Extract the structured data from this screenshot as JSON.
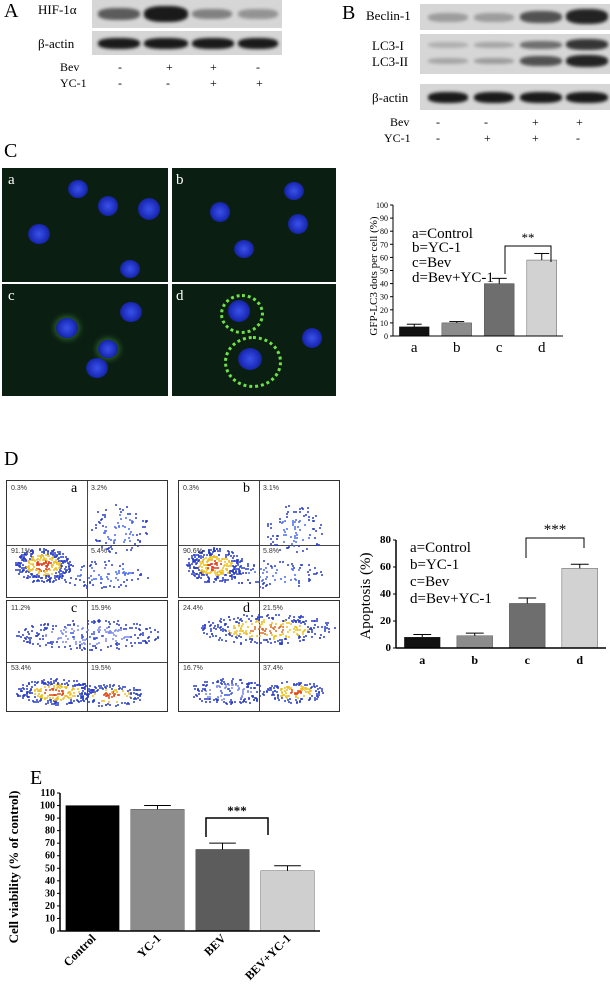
{
  "panel_A": {
    "label": "A",
    "rows": [
      "HIF-1α",
      "β-actin"
    ],
    "treatments": [
      {
        "name": "Bev",
        "marks": [
          "-",
          "+",
          "+",
          "-"
        ]
      },
      {
        "name": "YC-1",
        "marks": [
          "-",
          "-",
          "+",
          "+"
        ]
      }
    ],
    "hif_intensity": [
      0.6,
      1.0,
      0.45,
      0.3
    ]
  },
  "panel_B": {
    "label": "B",
    "rows": [
      "Beclin-1",
      "LC3-I",
      "LC3-II",
      "β-actin"
    ],
    "treatments": [
      {
        "name": "Bev",
        "marks": [
          "-",
          "-",
          "+",
          "+"
        ]
      },
      {
        "name": "YC-1",
        "marks": [
          "-",
          "+",
          "+",
          "-"
        ]
      }
    ]
  },
  "panel_C": {
    "label": "C",
    "subpanels": [
      "a",
      "b",
      "c",
      "d"
    ],
    "legend": [
      "a=Control",
      "b=YC-1",
      "c=Bev",
      "d=Bev+YC-1"
    ],
    "significance": "**"
  },
  "panel_D": {
    "label": "D",
    "subpanels": [
      "a",
      "b",
      "c",
      "d"
    ],
    "quadrant_labels": [
      [
        "0.3%",
        "3.2%",
        "91.1%",
        "5.4%"
      ],
      [
        "0.3%",
        "3.1%",
        "90.6%",
        "5.8%"
      ],
      [
        "11.2%",
        "15.9%",
        "53.4%",
        "19.5%"
      ],
      [
        "24.4%",
        "21.5%",
        "16.7%",
        "37.4%"
      ]
    ],
    "legend": [
      "a=Control",
      "b=YC-1",
      "c=Bev",
      "d=Bev+YC-1"
    ],
    "significance": "***"
  },
  "panel_E": {
    "label": "E",
    "significance": "***"
  },
  "chart_data": [
    {
      "type": "bar",
      "categories": [
        "a",
        "b",
        "c",
        "d"
      ],
      "values": [
        7,
        10,
        40,
        58
      ],
      "errors": [
        2,
        1,
        4,
        5
      ],
      "ylabel": "GFP-LC3 dots per cell (%)",
      "ylim": [
        0,
        100
      ],
      "yticks": [
        "0",
        "10",
        "20",
        "30",
        "40",
        "50",
        "60",
        "70",
        "80",
        "90",
        "100"
      ],
      "colors": [
        "#111111",
        "#8c8c8c",
        "#6e6e6e",
        "#d2d2d2"
      ]
    },
    {
      "type": "bar",
      "categories": [
        "a",
        "b",
        "c",
        "d"
      ],
      "values": [
        8,
        9,
        33,
        59
      ],
      "errors": [
        2,
        2,
        4,
        3
      ],
      "ylabel": "Apoptosis (%)",
      "ylim": [
        0,
        80
      ],
      "yticks": [
        "0",
        "20",
        "40",
        "60",
        "80"
      ],
      "colors": [
        "#111111",
        "#8c8c8c",
        "#6e6e6e",
        "#d2d2d2"
      ]
    },
    {
      "type": "bar",
      "categories": [
        "Control",
        "YC-1",
        "BEV",
        "BEV+YC-1"
      ],
      "values": [
        100,
        97,
        65,
        48
      ],
      "errors": [
        0,
        3,
        5,
        4
      ],
      "ylabel": "Cell viability (% of control)",
      "ylim": [
        0,
        110
      ],
      "yticks": [
        "0",
        "10",
        "20",
        "30",
        "40",
        "50",
        "60",
        "70",
        "80",
        "90",
        "100",
        "110"
      ],
      "colors": [
        "#000000",
        "#8c8c8c",
        "#5c5c5c",
        "#cfcfcf"
      ]
    }
  ]
}
